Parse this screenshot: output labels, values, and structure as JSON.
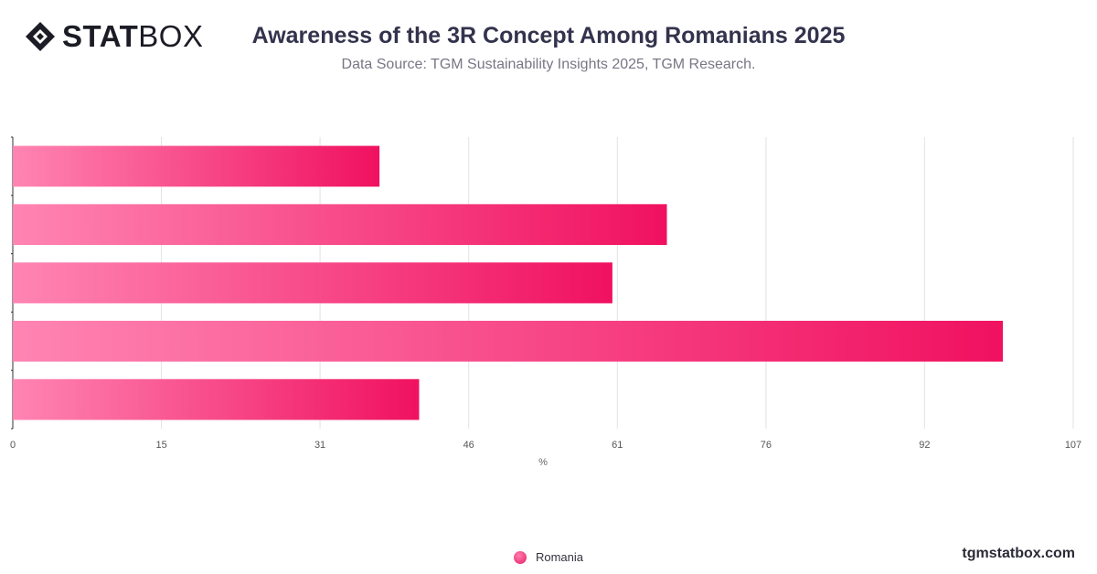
{
  "brand": {
    "name_bold": "STAT",
    "name_light": "BOX",
    "logo_icon": "statbox-diamond-icon"
  },
  "header": {
    "title": "Awareness of the 3R Concept Among Romanians 2025",
    "subtitle": "Data Source: TGM Sustainability Insights 2025, TGM Research."
  },
  "footer": {
    "site": "tgmstatbox.com"
  },
  "colors": {
    "bar_start": "#ff85b3",
    "bar_end": "#f0115f",
    "grid": "#e2e2e2",
    "axis": "#333333",
    "text": "#33334d"
  },
  "chart_data": {
    "type": "bar",
    "orientation": "horizontal",
    "title": "Awareness of the 3R Concept Among Romanians 2025",
    "xlabel": "%",
    "xlim": [
      0,
      107
    ],
    "xticks": [
      0,
      15,
      31,
      46,
      61,
      76,
      92,
      107
    ],
    "grid": true,
    "legend_position": "bottom",
    "series": [
      {
        "name": "Romania",
        "values": [
          37,
          66,
          60.5,
          99.9,
          41
        ]
      }
    ]
  }
}
